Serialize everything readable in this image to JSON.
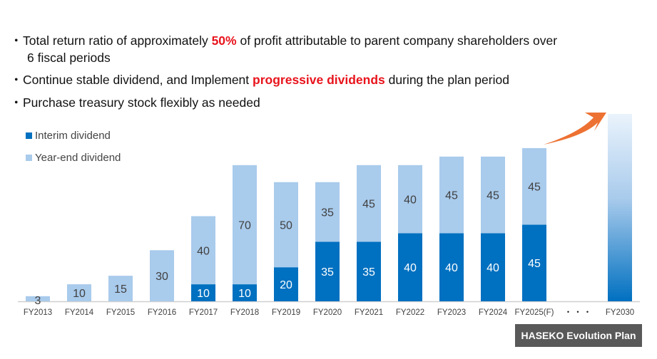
{
  "bullets": [
    {
      "pre": "Total return ratio of approximately ",
      "hl": "50%",
      "post": " of profit attributable to parent company shareholders over",
      "line2": "6 fiscal periods"
    },
    {
      "pre": "Continue stable dividend, and Implement ",
      "hl": "progressive dividends",
      "post": " during the plan period"
    },
    {
      "pre": "Purchase treasury stock flexibly as needed"
    }
  ],
  "bullet_mark": "・",
  "plan_label": "HASEKO Evolution Plan",
  "ellipsis": "・・・",
  "colors": {
    "interim": "#0070c0",
    "year_end": "#a9cbec",
    "arrow": "#ed7132",
    "highlight": "#e8141c"
  },
  "chart_data": {
    "type": "bar",
    "stacked": true,
    "categories": [
      "FY2013",
      "FY2014",
      "FY2015",
      "FY2016",
      "FY2017",
      "FY2018",
      "FY2019",
      "FY2020",
      "FY2021",
      "FY2022",
      "FY2023",
      "FY2024",
      "FY2025(F)"
    ],
    "series": [
      {
        "name": "Interim dividend",
        "values": [
          0,
          0,
          0,
          0,
          10,
          10,
          20,
          35,
          35,
          40,
          40,
          40,
          45
        ]
      },
      {
        "name": "Year-end dividend",
        "values": [
          3,
          10,
          15,
          30,
          40,
          70,
          50,
          35,
          45,
          40,
          45,
          45,
          45
        ]
      }
    ],
    "future_category": "FY2030",
    "legend_position": "top-left",
    "ylim": [
      0,
      90
    ]
  }
}
